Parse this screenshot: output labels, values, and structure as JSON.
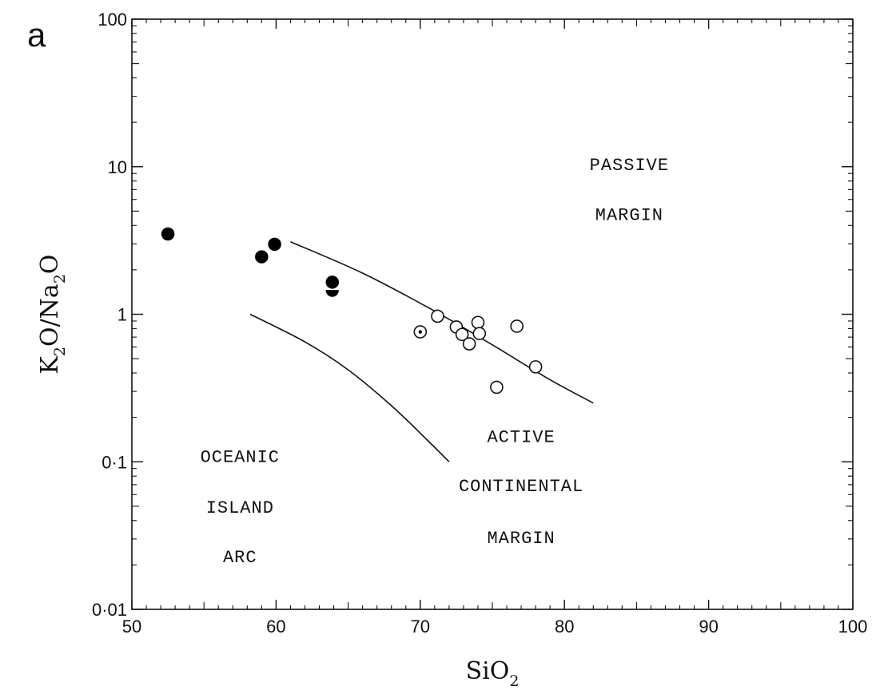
{
  "chart_data": {
    "type": "scatter",
    "panel_label": "a",
    "x_axis": {
      "label_base": "SiO",
      "label_sub": "2",
      "range": [
        50,
        100
      ],
      "ticks": [
        50,
        60,
        70,
        80,
        90,
        100
      ],
      "tick_labels": [
        "50",
        "60",
        "70",
        "80",
        "90",
        "100"
      ]
    },
    "y_axis": {
      "label_parts": [
        {
          "text": "K",
          "sub": false
        },
        {
          "text": "2",
          "sub": true
        },
        {
          "text": "O/Na",
          "sub": false
        },
        {
          "text": "2",
          "sub": true
        },
        {
          "text": "O",
          "sub": false
        }
      ],
      "scale": "log",
      "range": [
        0.01,
        100
      ],
      "ticks": [
        0.01,
        0.1,
        1,
        10,
        100
      ],
      "tick_labels": [
        "0·01",
        "0·1",
        "1",
        "10",
        "100"
      ]
    },
    "grid": false,
    "region_labels": [
      {
        "text": "PASSIVE",
        "x": 84.5,
        "y": 10.5
      },
      {
        "text": "MARGIN",
        "x": 84.5,
        "y": 4.8
      },
      {
        "text": "ACTIVE",
        "x": 77,
        "y": 0.15
      },
      {
        "text": "CONTINENTAL",
        "x": 77,
        "y": 0.07
      },
      {
        "text": "MARGIN",
        "x": 77,
        "y": 0.031
      },
      {
        "text": "OCEANIC",
        "x": 57.5,
        "y": 0.11
      },
      {
        "text": "ISLAND",
        "x": 57.5,
        "y": 0.05
      },
      {
        "text": "ARC",
        "x": 57.5,
        "y": 0.023
      }
    ],
    "boundaries": [
      {
        "name": "upper-boundary",
        "x": [
          61,
          66,
          71,
          75,
          79,
          82
        ],
        "y": [
          3.1,
          1.9,
          1.05,
          0.62,
          0.36,
          0.25
        ]
      },
      {
        "name": "lower-boundary",
        "x": [
          58.2,
          62,
          65,
          68,
          70.5,
          72
        ],
        "y": [
          1.0,
          0.65,
          0.42,
          0.24,
          0.14,
          0.1
        ]
      }
    ],
    "series": [
      {
        "marker": "filled-circle",
        "points": [
          {
            "x": 52.5,
            "y": 3.5
          },
          {
            "x": 59.0,
            "y": 2.45
          },
          {
            "x": 59.9,
            "y": 2.98
          },
          {
            "x": 63.9,
            "y": 1.65
          }
        ]
      },
      {
        "marker": "half-filled-circle",
        "points": [
          {
            "x": 63.9,
            "y": 1.45
          }
        ]
      },
      {
        "marker": "dotted-circle",
        "points": [
          {
            "x": 70.0,
            "y": 0.76
          }
        ]
      },
      {
        "marker": "open-circle",
        "points": [
          {
            "x": 71.2,
            "y": 0.97
          },
          {
            "x": 72.5,
            "y": 0.82
          },
          {
            "x": 72.9,
            "y": 0.73
          },
          {
            "x": 73.4,
            "y": 0.63
          },
          {
            "x": 74.0,
            "y": 0.88
          },
          {
            "x": 74.1,
            "y": 0.74
          },
          {
            "x": 75.3,
            "y": 0.32
          },
          {
            "x": 76.7,
            "y": 0.83
          },
          {
            "x": 78.0,
            "y": 0.44
          }
        ]
      }
    ]
  }
}
